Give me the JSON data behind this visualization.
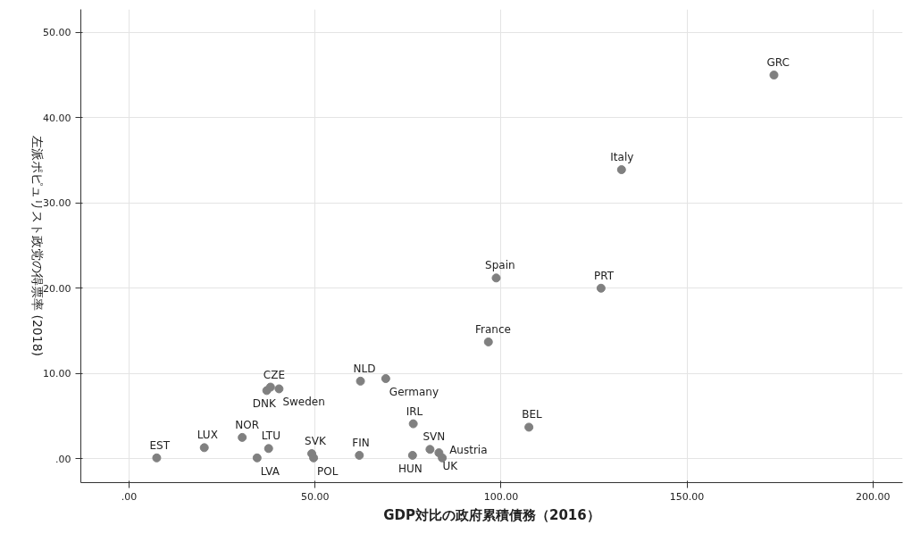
{
  "chart_data": {
    "type": "scatter",
    "xlabel": "GDP対比の政府累積債務（2016）",
    "ylabel": "左派ポピュリスト政党の得票率 (2018)",
    "xlim": [
      -13,
      208
    ],
    "ylim": [
      -2.8,
      52.7
    ],
    "xticks": [
      {
        "value": 0,
        "label": ".00"
      },
      {
        "value": 50,
        "label": "50.00"
      },
      {
        "value": 100,
        "label": "100.00"
      },
      {
        "value": 150,
        "label": "150.00"
      },
      {
        "value": 200,
        "label": "200.00"
      }
    ],
    "yticks": [
      {
        "value": 0,
        "label": ".00"
      },
      {
        "value": 10,
        "label": "10.00"
      },
      {
        "value": 20,
        "label": "20.00"
      },
      {
        "value": 30,
        "label": "30.00"
      },
      {
        "value": 40,
        "label": "40.00"
      },
      {
        "value": 50,
        "label": "50.00"
      }
    ],
    "grid": true,
    "marker": "circle",
    "legend": false,
    "series": [
      {
        "name": "GRC",
        "color": "#808080",
        "x": [
          173.4
        ],
        "values": [
          45.0
        ]
      },
      {
        "name": "Italy",
        "color": "#808080",
        "x": [
          132.4
        ],
        "values": [
          33.9
        ]
      },
      {
        "name": "Spain",
        "color": "#808080",
        "x": [
          98.7
        ],
        "values": [
          21.2
        ]
      },
      {
        "name": "PRT",
        "color": "#808080",
        "x": [
          126.9
        ],
        "values": [
          20.0
        ]
      },
      {
        "name": "France",
        "color": "#808080",
        "x": [
          96.6
        ],
        "values": [
          13.7
        ]
      },
      {
        "name": "BEL",
        "color": "#808080",
        "x": [
          107.5
        ],
        "values": [
          3.7
        ]
      },
      {
        "name": "NLD",
        "color": "#808080",
        "x": [
          62.2
        ],
        "values": [
          9.1
        ]
      },
      {
        "name": "Germany",
        "color": "#808080",
        "x": [
          69.0
        ],
        "values": [
          9.4
        ]
      },
      {
        "name": "DNK",
        "color": "#808080",
        "x": [
          37.0
        ],
        "values": [
          8.0
        ]
      },
      {
        "name": "CZE",
        "color": "#808080",
        "x": [
          38.0
        ],
        "values": [
          8.4
        ]
      },
      {
        "name": "Sweden",
        "color": "#808080",
        "x": [
          40.3
        ],
        "values": [
          8.2
        ]
      },
      {
        "name": "IRL",
        "color": "#808080",
        "x": [
          76.4
        ],
        "values": [
          4.1
        ]
      },
      {
        "name": "SVN",
        "color": "#808080",
        "x": [
          80.9
        ],
        "values": [
          1.1
        ]
      },
      {
        "name": "UK",
        "color": "#808080",
        "x": [
          83.3
        ],
        "values": [
          0.7
        ]
      },
      {
        "name": "Austria",
        "color": "#808080",
        "x": [
          84.2
        ],
        "values": [
          0.1
        ]
      },
      {
        "name": "HUN",
        "color": "#808080",
        "x": [
          76.2
        ],
        "values": [
          0.4
        ]
      },
      {
        "name": "FIN",
        "color": "#808080",
        "x": [
          61.9
        ],
        "values": [
          0.4
        ]
      },
      {
        "name": "SVK",
        "color": "#808080",
        "x": [
          49.1
        ],
        "values": [
          0.6
        ]
      },
      {
        "name": "POL",
        "color": "#808080",
        "x": [
          49.6
        ],
        "values": [
          0.1
        ]
      },
      {
        "name": "LTU",
        "color": "#808080",
        "x": [
          37.5
        ],
        "values": [
          1.2
        ]
      },
      {
        "name": "LVA",
        "color": "#808080",
        "x": [
          34.4
        ],
        "values": [
          0.1
        ]
      },
      {
        "name": "NOR",
        "color": "#808080",
        "x": [
          30.4
        ],
        "values": [
          2.5
        ]
      },
      {
        "name": "LUX",
        "color": "#808080",
        "x": [
          20.2
        ],
        "values": [
          1.3
        ]
      },
      {
        "name": "EST",
        "color": "#808080",
        "x": [
          7.4
        ],
        "values": [
          0.1
        ]
      }
    ]
  }
}
